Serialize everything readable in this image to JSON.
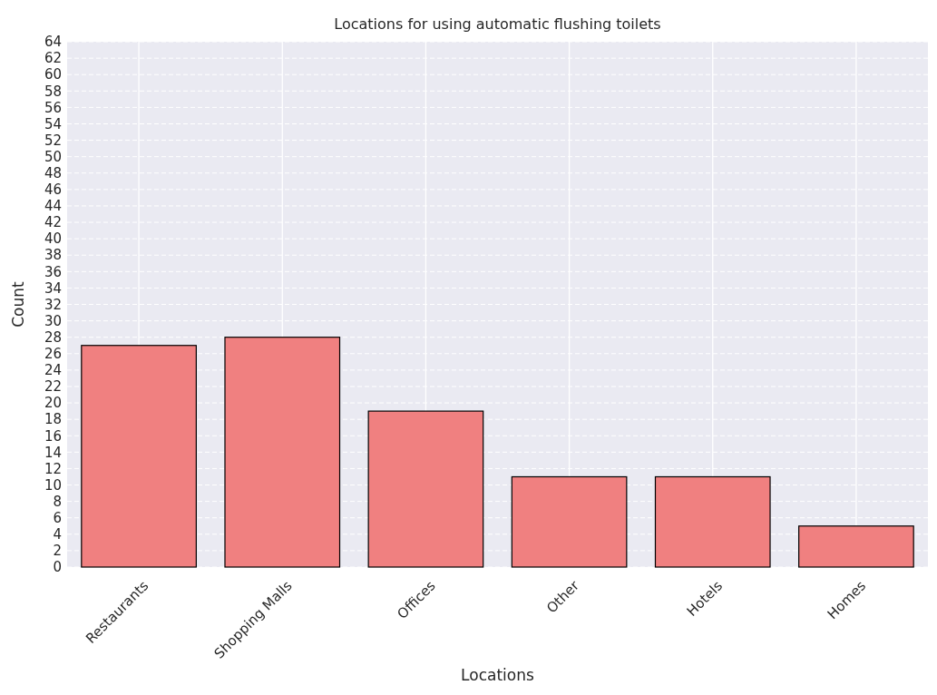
{
  "chart_data": {
    "type": "bar",
    "title": "Locations for using automatic flushing toilets",
    "xlabel": "Locations",
    "ylabel": "Count",
    "categories": [
      "Restaurants",
      "Shopping Malls",
      "Offices",
      "Other",
      "Hotels",
      "Homes"
    ],
    "values": [
      27,
      28,
      19,
      11,
      11,
      5
    ],
    "color": "#f08080",
    "ylim": [
      0,
      64
    ],
    "yticks": [
      0,
      2,
      4,
      6,
      8,
      10,
      12,
      14,
      16,
      18,
      20,
      22,
      24,
      26,
      28,
      30,
      32,
      34,
      36,
      38,
      40,
      42,
      44,
      46,
      48,
      50,
      52,
      54,
      56,
      58,
      60,
      62,
      64
    ],
    "grid": true
  }
}
